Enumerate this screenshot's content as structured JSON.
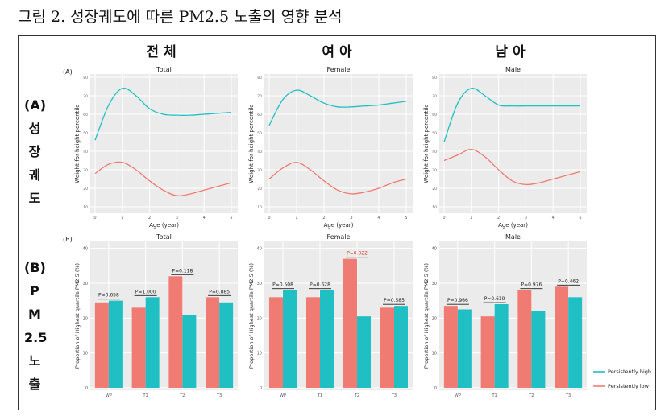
{
  "figure_title": "그림 2. 성장궤도에 따른 PM2.5 노출의 영향 분석",
  "column_headers": [
    "전 체",
    "여 아",
    "남 아"
  ],
  "row_a_label": [
    "(A)",
    "성",
    "장",
    "궤",
    "도"
  ],
  "row_b_label": [
    "(B)",
    "P",
    "M",
    "2.5",
    "노",
    "출"
  ],
  "colors": {
    "high": "#1fbfc3",
    "low": "#f07b72",
    "panel_bg": "#ebebeb",
    "sig": "#e0302a"
  },
  "chart_data": [
    {
      "type": "line",
      "panel": "(A)",
      "title": "Total",
      "xlabel": "Age (year)",
      "ylabel": "Weight-for-height percentile",
      "xticks": [
        0,
        1,
        2,
        3,
        4,
        5
      ],
      "yticks": [
        10,
        20,
        30,
        40,
        50,
        60,
        70,
        80
      ],
      "xlim": [
        0,
        5
      ],
      "ylim": [
        10,
        80
      ],
      "series": [
        {
          "name": "Persistently high",
          "x": [
            0,
            0.5,
            1,
            1.5,
            2,
            2.5,
            3,
            3.5,
            4,
            4.5,
            5
          ],
          "y": [
            46,
            65,
            74,
            70,
            63,
            60,
            59.5,
            59.5,
            60,
            60.5,
            61
          ]
        },
        {
          "name": "Persistently low",
          "x": [
            0,
            0.5,
            1,
            1.5,
            2,
            2.5,
            3,
            3.5,
            4,
            4.5,
            5
          ],
          "y": [
            28,
            33,
            34,
            30,
            24,
            19,
            16,
            17,
            19,
            21,
            23
          ]
        }
      ]
    },
    {
      "type": "line",
      "panel": "(A)",
      "title": "Female",
      "xlabel": "Age (year)",
      "ylabel": "Weight-for-height percentile",
      "xticks": [
        0,
        1,
        2,
        3,
        4,
        5
      ],
      "yticks": [
        10,
        20,
        30,
        40,
        50,
        60,
        70,
        80
      ],
      "xlim": [
        0,
        5
      ],
      "ylim": [
        10,
        80
      ],
      "series": [
        {
          "name": "Persistently high",
          "x": [
            0,
            0.5,
            1,
            1.5,
            2,
            2.5,
            3,
            3.5,
            4,
            4.5,
            5
          ],
          "y": [
            54,
            68,
            73,
            70,
            66,
            64,
            64,
            64.5,
            65,
            66,
            67
          ]
        },
        {
          "name": "Persistently low",
          "x": [
            0,
            0.5,
            1,
            1.5,
            2,
            2.5,
            3,
            3.5,
            4,
            4.5,
            5
          ],
          "y": [
            25,
            31,
            34,
            30,
            24,
            19,
            17,
            18,
            20,
            23,
            25
          ]
        }
      ]
    },
    {
      "type": "line",
      "panel": "(A)",
      "title": "Male",
      "xlabel": "Age (year)",
      "ylabel": "Weight-for-height percentile",
      "xticks": [
        0,
        1,
        2,
        3,
        4,
        5
      ],
      "yticks": [
        10,
        20,
        30,
        40,
        50,
        60,
        70,
        80
      ],
      "xlim": [
        0,
        5
      ],
      "ylim": [
        10,
        80
      ],
      "series": [
        {
          "name": "Persistently high",
          "x": [
            0,
            0.5,
            1,
            1.5,
            2,
            2.5,
            3,
            3.5,
            4,
            4.5,
            5
          ],
          "y": [
            45,
            66,
            74,
            70,
            65,
            64.5,
            64.5,
            64.5,
            64.5,
            64.5,
            64.5
          ]
        },
        {
          "name": "Persistently low",
          "x": [
            0,
            0.5,
            1,
            1.5,
            2,
            2.5,
            3,
            3.5,
            4,
            4.5,
            5
          ],
          "y": [
            35,
            38,
            41,
            37,
            30,
            24,
            22,
            23,
            25,
            27,
            29
          ]
        }
      ]
    },
    {
      "type": "bar",
      "panel": "(B)",
      "title": "Total",
      "ylabel": "Proportion of Highest quartile PM2.5 (%)",
      "categories": [
        "WP",
        "T1",
        "T2",
        "T3"
      ],
      "yticks": [
        0,
        10,
        20,
        30,
        40
      ],
      "ylim": [
        0,
        42
      ],
      "series": [
        {
          "name": "Persistently low",
          "values": [
            24.5,
            23,
            32,
            26
          ]
        },
        {
          "name": "Persistently high",
          "values": [
            25,
            26,
            21,
            24.5
          ]
        }
      ],
      "annotations": [
        {
          "text": "P=0.658",
          "significant": false
        },
        {
          "text": "P=1.000",
          "significant": false
        },
        {
          "text": "P=0.118",
          "significant": false
        },
        {
          "text": "P=0.885",
          "significant": false
        }
      ]
    },
    {
      "type": "bar",
      "panel": "(B)",
      "title": "Female",
      "ylabel": "Proportion of Highest quartile PM2.5 (%)",
      "categories": [
        "WP",
        "T1",
        "T2",
        "T3"
      ],
      "yticks": [
        0,
        10,
        20,
        30,
        40
      ],
      "ylim": [
        0,
        42
      ],
      "series": [
        {
          "name": "Persistently low",
          "values": [
            26,
            26,
            37,
            23
          ]
        },
        {
          "name": "Persistently high",
          "values": [
            28,
            28,
            20.5,
            23.5
          ]
        }
      ],
      "annotations": [
        {
          "text": "P=0.508",
          "significant": false
        },
        {
          "text": "P=0.628",
          "significant": false
        },
        {
          "text": "P=0.022",
          "significant": true
        },
        {
          "text": "P=0.585",
          "significant": false
        }
      ]
    },
    {
      "type": "bar",
      "panel": "(B)",
      "title": "Male",
      "ylabel": "Proportion of Highest quartile PM2.5 (%)",
      "categories": [
        "WP",
        "T1",
        "T2",
        "T3"
      ],
      "yticks": [
        0,
        10,
        20,
        30,
        40
      ],
      "ylim": [
        0,
        42
      ],
      "series": [
        {
          "name": "Persistently low",
          "values": [
            23.5,
            20.5,
            28,
            29
          ]
        },
        {
          "name": "Persistently high",
          "values": [
            22.5,
            24,
            22,
            26
          ]
        }
      ],
      "annotations": [
        {
          "text": "P=0.966",
          "significant": false
        },
        {
          "text": "P=0.619",
          "significant": false
        },
        {
          "text": "P=0.976",
          "significant": false
        },
        {
          "text": "P=0.462",
          "significant": false
        }
      ]
    }
  ],
  "legend": [
    "Persistently high",
    "Persistently low"
  ]
}
